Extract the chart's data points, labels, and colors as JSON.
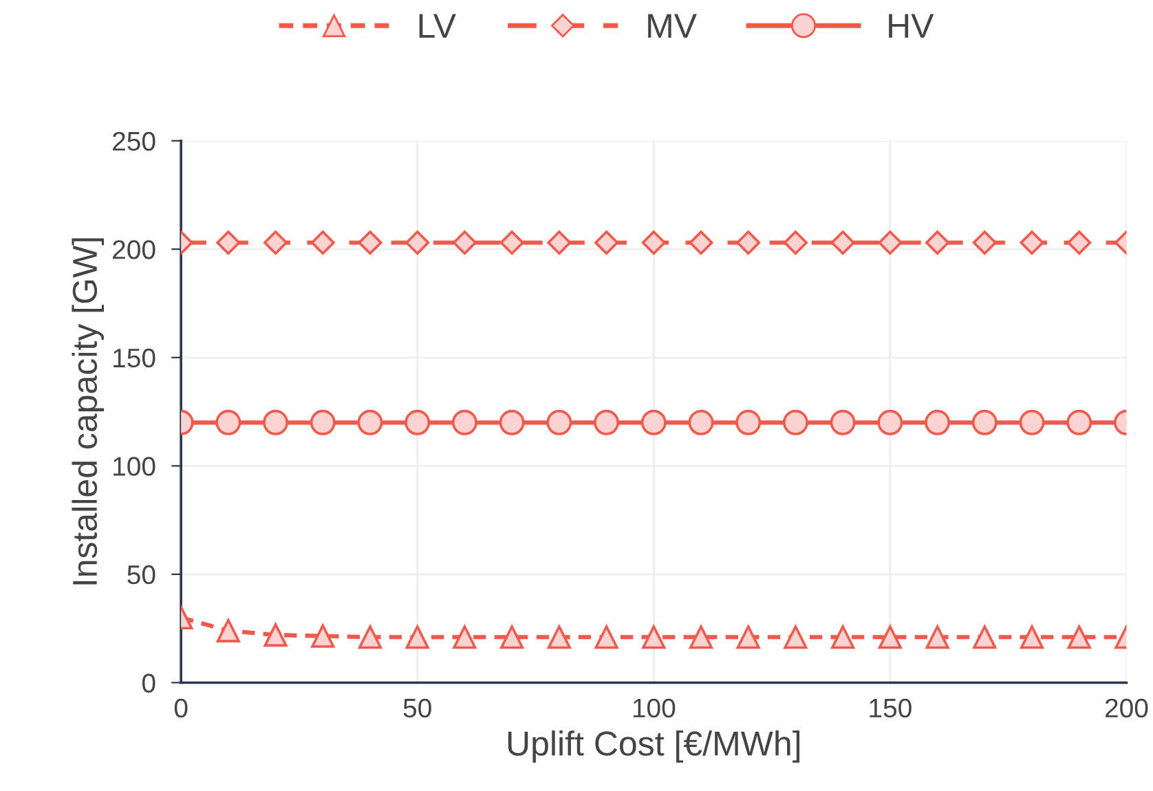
{
  "chart_data": {
    "type": "line",
    "xlabel": "Uplift Cost [€/MWh]",
    "ylabel": "Installed capacity [GW]",
    "x": [
      0,
      10,
      20,
      30,
      40,
      50,
      60,
      70,
      80,
      90,
      100,
      110,
      120,
      130,
      140,
      150,
      160,
      170,
      180,
      190,
      200
    ],
    "series": [
      {
        "name": "LV",
        "color": "#ef5a4c",
        "marker": "triangle",
        "line_style": "dotted",
        "values": [
          30,
          24,
          22,
          21.5,
          21,
          21,
          21,
          21,
          21,
          21,
          21,
          21,
          21,
          21,
          21,
          21,
          21,
          21,
          21,
          21,
          21
        ]
      },
      {
        "name": "MV",
        "color": "#ef5a4c",
        "marker": "diamond",
        "line_style": "dashed",
        "values": [
          203,
          203,
          203,
          203,
          203,
          203,
          203,
          203,
          203,
          203,
          203,
          203,
          203,
          203,
          203,
          203,
          203,
          203,
          203,
          203,
          203
        ]
      },
      {
        "name": "HV",
        "color": "#ef5a4c",
        "marker": "circle",
        "line_style": "solid",
        "values": [
          120,
          120,
          120,
          120,
          120,
          120,
          120,
          120,
          120,
          120,
          120,
          120,
          120,
          120,
          120,
          120,
          120,
          120,
          120,
          120,
          120
        ]
      }
    ],
    "xlim": [
      0,
      200
    ],
    "xticks": [
      0,
      50,
      100,
      150,
      200
    ],
    "ylim": [
      0,
      250
    ],
    "yticks": [
      0,
      50,
      100,
      150,
      200,
      250
    ],
    "grid": true,
    "legend": "top"
  }
}
